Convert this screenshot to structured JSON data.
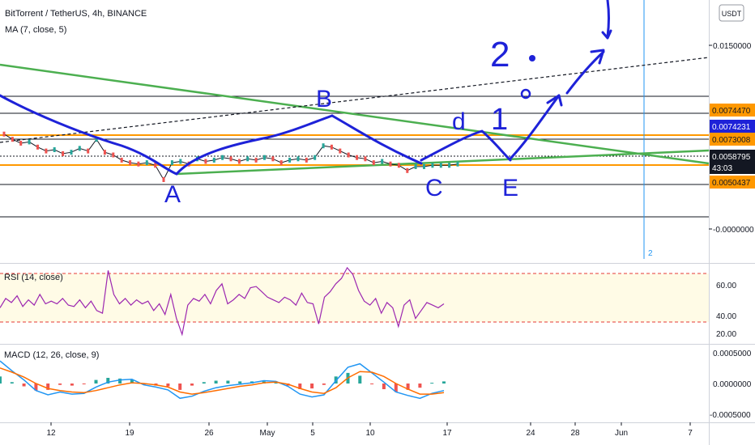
{
  "header": {
    "symbol_line": "BitTorrent / TetherUS, 4h, BINANCE",
    "ma_label": "MA (7, close, 5)",
    "currency_button": "USDT"
  },
  "rsi_panel": {
    "label": "RSI (14, close)",
    "ticks": [
      "60.00",
      "40.00",
      "20.00"
    ]
  },
  "macd_panel": {
    "label": "MACD (12, 26, close, 9)",
    "ticks": [
      "0.0005000",
      "0.0000000",
      "-0.0005000"
    ]
  },
  "price_axis": {
    "ticks": [
      "0.0150000",
      "-0.0000000"
    ],
    "badges": [
      {
        "text": "0.0074470",
        "bg": "#ff9800",
        "fg": "#131722"
      },
      {
        "text": "0.0074231",
        "bg": "#1e22d8",
        "fg": "#ffffff"
      },
      {
        "text": "0.0073008",
        "bg": "#ff9800",
        "fg": "#131722"
      },
      {
        "text": "0.0058795",
        "bg": "#131722",
        "fg": "#ffffff"
      },
      {
        "text": "43:03",
        "bg": "#131722",
        "fg": "#ffffff"
      },
      {
        "text": "0.0050437",
        "bg": "#ff9800",
        "fg": "#131722"
      }
    ]
  },
  "time_axis": {
    "ticks": [
      "12",
      "19",
      "26",
      "May",
      "5",
      "10",
      "17",
      "24",
      "28",
      "Jun",
      "7"
    ]
  },
  "annotations": {
    "points": [
      "A",
      "B",
      "C",
      "d",
      "E"
    ],
    "numbers": [
      "2",
      "1"
    ],
    "vertical_marker_label": "2"
  },
  "colors": {
    "green_line": "#4caf50",
    "blue_drawing": "#1e22d8",
    "orange_line": "#ff9800",
    "rsi_line": "#9c27b0",
    "macd_line": "#2196f3",
    "signal_line": "#ff6d00",
    "hist_pos": "#26a69a",
    "hist_neg": "#ef5350"
  },
  "chart_data": {
    "type": "line",
    "title": "BitTorrent / TetherUS, 4h, BINANCE",
    "indicator": "MA (7, close, 5)",
    "price_range": [
      -0.0017,
      0.0185
    ],
    "last_price": 0.0058795,
    "levels": [
      0.007447,
      0.0074231,
      0.0073008,
      0.0058795,
      0.0050437
    ],
    "x_ticks": [
      "12",
      "19",
      "26",
      "May",
      "5",
      "10",
      "17",
      "24",
      "28",
      "Jun",
      "7"
    ],
    "series": [
      {
        "values": [
          0.0082,
          0.0078,
          0.0075,
          0.0076,
          0.0072,
          0.0069,
          0.007,
          0.0067,
          0.0068,
          0.0071,
          0.0069,
          0.0078,
          0.0068,
          0.0066,
          0.0062,
          0.006,
          0.0059,
          0.006,
          0.0058,
          0.0047,
          0.006,
          0.0061,
          0.0059,
          0.0063,
          0.0061,
          0.0062,
          0.0064,
          0.0063,
          0.0061,
          0.0063,
          0.0062,
          0.0064,
          0.0063,
          0.006,
          0.0062,
          0.0063,
          0.0062,
          0.0064,
          0.0073,
          0.0072,
          0.0069,
          0.0066,
          0.0064,
          0.0063,
          0.006,
          0.0061,
          0.0059,
          0.0058,
          0.0054,
          0.0057,
          0.0057,
          0.0058,
          0.0058,
          0.0058,
          0.0059
        ]
      }
    ],
    "rsi": {
      "ylim": [
        15,
        75
      ],
      "values": [
        42,
        49,
        46,
        51,
        43,
        48,
        44,
        52,
        45,
        47,
        45,
        49,
        44,
        43,
        48,
        42,
        47,
        40,
        38,
        70,
        52,
        45,
        49,
        44,
        48,
        45,
        47,
        40,
        45,
        37,
        52,
        34,
        22,
        44,
        49,
        47,
        52,
        45,
        55,
        60,
        45,
        48,
        52,
        49,
        57,
        58,
        54,
        50,
        48,
        46,
        50,
        48,
        44,
        53,
        46,
        45,
        30,
        50,
        54,
        60,
        64,
        72,
        67,
        55,
        47,
        44,
        49,
        38,
        46,
        42,
        28,
        44,
        48,
        34,
        40,
        46,
        44,
        42,
        45
      ]
    },
    "macd": {
      "ylim": [
        -0.00055,
        0.00055
      ],
      "macd": [
        0.00032,
        0.00018,
        5e-05,
        -0.0001,
        -0.00016,
        -0.00012,
        -0.00015,
        -0.00014,
        -5e-05,
        2e-05,
        5e-05,
        6e-05,
        -2e-05,
        -5e-05,
        -9e-05,
        -0.00021,
        -0.00018,
        -0.00011,
        -6e-05,
        -3e-05,
        -1e-05,
        1e-05,
        4e-05,
        3e-05,
        -4e-05,
        -0.00015,
        -0.00019,
        -0.00016,
        4e-05,
        0.00023,
        0.00028,
        0.00015,
        2e-05,
        -0.00012,
        -0.00017,
        -0.00021,
        -0.00014,
        -0.0001
      ],
      "signal": [
        0.00022,
        0.00016,
        9e-05,
        0.0,
        -7e-05,
        -0.0001,
        -0.00012,
        -0.00013,
        -0.0001,
        -6e-05,
        -2e-05,
        1e-05,
        0.0,
        -2e-05,
        -5e-05,
        -0.00012,
        -0.00015,
        -0.00013,
        -0.0001,
        -7e-05,
        -4e-05,
        -2e-05,
        1e-05,
        2e-05,
        -1e-05,
        -7e-05,
        -0.00012,
        -0.00014,
        -6e-05,
        8e-05,
        0.00017,
        0.00016,
        0.0001,
        0.0,
        -8e-05,
        -0.00015,
        -0.00015,
        -0.00013
      ]
    }
  }
}
